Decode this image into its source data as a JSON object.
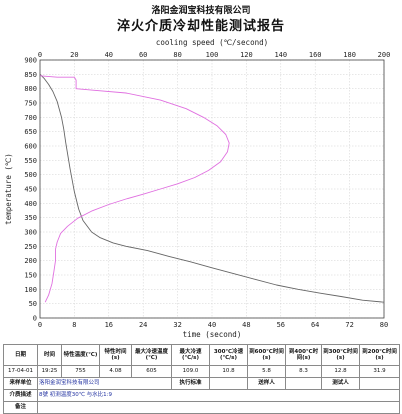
{
  "header": {
    "company": "洛阳金润宝科技有限公司",
    "title": "淬火介质冷却性能测试报告"
  },
  "chart_data": {
    "type": "line",
    "top_axis_label": "cooling speed (℃/second)",
    "bottom_axis_label": "time (second)",
    "ylabel": "temperature (℃)",
    "top_ticks": [
      "0",
      "20",
      "40",
      "60",
      "80",
      "100",
      "120",
      "140",
      "160",
      "180",
      "200"
    ],
    "bottom_ticks": [
      "0",
      "8",
      "16",
      "24",
      "32",
      "40",
      "48",
      "56",
      "64",
      "72",
      "80"
    ],
    "y_ticks": [
      "0",
      "50",
      "100",
      "150",
      "200",
      "250",
      "300",
      "350",
      "400",
      "450",
      "500",
      "550",
      "600",
      "650",
      "700",
      "750",
      "800",
      "850",
      "900"
    ],
    "xlim_time": [
      0,
      80
    ],
    "xlim_speed": [
      0,
      200
    ],
    "ylim": [
      0,
      900
    ],
    "grid": true,
    "series": [
      {
        "color": "#666666",
        "axis": "time",
        "points": [
          [
            0,
            850
          ],
          [
            1,
            835
          ],
          [
            2,
            815
          ],
          [
            3,
            790
          ],
          [
            4,
            755
          ],
          [
            5,
            700
          ],
          [
            5.5,
            660
          ],
          [
            6,
            610
          ],
          [
            7,
            520
          ],
          [
            8,
            440
          ],
          [
            9,
            380
          ],
          [
            10,
            340
          ],
          [
            12,
            300
          ],
          [
            14,
            280
          ],
          [
            17,
            262
          ],
          [
            20,
            250
          ],
          [
            25,
            235
          ],
          [
            30,
            215
          ],
          [
            35,
            196
          ],
          [
            40,
            175
          ],
          [
            45,
            155
          ],
          [
            50,
            135
          ],
          [
            55,
            115
          ],
          [
            60,
            100
          ],
          [
            65,
            87
          ],
          [
            70,
            75
          ],
          [
            75,
            62
          ],
          [
            80,
            55
          ]
        ]
      },
      {
        "color": "#e070e0",
        "axis": "speed",
        "points": [
          [
            0,
            845
          ],
          [
            10,
            840
          ],
          [
            20,
            840
          ],
          [
            21,
            830
          ],
          [
            21,
            800
          ],
          [
            30,
            795
          ],
          [
            50,
            785
          ],
          [
            70,
            760
          ],
          [
            85,
            730
          ],
          [
            95,
            700
          ],
          [
            103,
            670
          ],
          [
            108,
            640
          ],
          [
            110,
            610
          ],
          [
            109,
            580
          ],
          [
            105,
            545
          ],
          [
            98,
            515
          ],
          [
            90,
            490
          ],
          [
            80,
            468
          ],
          [
            70,
            450
          ],
          [
            60,
            432
          ],
          [
            50,
            415
          ],
          [
            40,
            396
          ],
          [
            30,
            373
          ],
          [
            22,
            348
          ],
          [
            16,
            320
          ],
          [
            12,
            295
          ],
          [
            10,
            265
          ],
          [
            9,
            240
          ],
          [
            9,
            200
          ],
          [
            8,
            160
          ],
          [
            7,
            120
          ],
          [
            5,
            80
          ],
          [
            3,
            55
          ]
        ]
      }
    ]
  },
  "table": {
    "header": {
      "date": "日期",
      "time": "时间",
      "char_temp": "特性温度(℃)",
      "char_time": "特性时间(s)",
      "max_speed_temp": "最大冷速温度(℃)",
      "max_speed": "最大冷速(℃/s)",
      "speed_300": "300℃冷速(℃/s)",
      "to_600": "到600℃时间(s)",
      "to_400": "到400℃时间(s)",
      "to_300": "到300℃时间(s)",
      "to_200": "到200℃时间(s)"
    },
    "values": {
      "date": "17-04-01",
      "time": "19:25",
      "char_temp": "755",
      "char_time": "4.08",
      "max_speed_temp": "605",
      "max_speed": "109.0",
      "speed_300": "10.8",
      "to_600": "5.8",
      "to_400": "8.3",
      "to_300": "12.8",
      "to_200": "31.9"
    },
    "row2": {
      "sender_label": "来样单位",
      "sender_value": "洛阳金润宝科技有限公司",
      "executor_label": "执行标准",
      "deliverer_label": "送样人",
      "tester_label": "测试人"
    },
    "row3": {
      "desc_label": "介质描述",
      "desc_value": "8號   初测温度30℃   与水比1:9"
    },
    "row4": {
      "remark_label": "备注"
    }
  }
}
